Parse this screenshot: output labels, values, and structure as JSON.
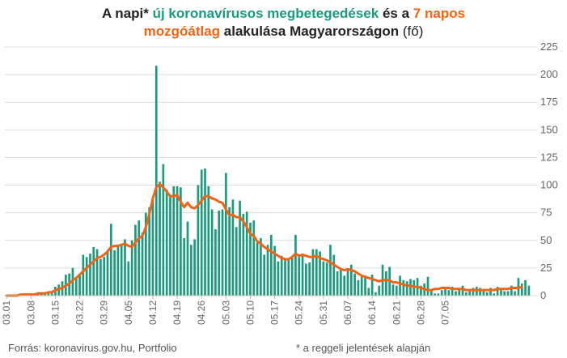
{
  "title": {
    "part1": "A napi* ",
    "part2": "új koronavírusos megbetegedések",
    "part3": " és a ",
    "part4": "7 napos",
    "part5": "mozgóátlag",
    "part6": " alakulása Magyarországon",
    "part7": " (fő)"
  },
  "footer": {
    "source": "Forrás: koronavirus.gov.hu, Portfolio",
    "note": "* a reggeli jelentések alapján"
  },
  "colors": {
    "bars": "#1a9b7e",
    "line": "#f06414",
    "grid": "#dddddd",
    "text": "#666666"
  },
  "chart_data": {
    "type": "bar",
    "ylim": [
      0,
      225
    ],
    "yticks": [
      0,
      25,
      50,
      75,
      100,
      125,
      150,
      175,
      200,
      225
    ],
    "grid": true,
    "x_tick_labels": [
      "03.01",
      "03.08",
      "03.15",
      "03.22",
      "03.29",
      "04.05",
      "04.12",
      "04.19",
      "04.26",
      "05.03",
      "05.10",
      "05.17",
      "05.24",
      "05.31",
      "06.07",
      "06.14",
      "06.21",
      "06.28",
      "07.05"
    ],
    "series": [
      {
        "type": "bar",
        "values": [
          0,
          0,
          0,
          0,
          1,
          1,
          1,
          1,
          2,
          3,
          2,
          3,
          3,
          3,
          8,
          10,
          13,
          19,
          20,
          25,
          17,
          19,
          37,
          35,
          38,
          44,
          42,
          33,
          35,
          41,
          65,
          41,
          46,
          45,
          51,
          31,
          50,
          64,
          68,
          57,
          75,
          80,
          89,
          208,
          103,
          119,
          96,
          91,
          99,
          99,
          98,
          52,
          67,
          46,
          51,
          100,
          114,
          115,
          99,
          78,
          60,
          77,
          78,
          111,
          80,
          87,
          62,
          86,
          74,
          76,
          66,
          68,
          48,
          52,
          37,
          46,
          55,
          45,
          31,
          36,
          34,
          33,
          35,
          55,
          35,
          38,
          29,
          30,
          42,
          42,
          40,
          31,
          30,
          46,
          37,
          22,
          24,
          18,
          23,
          28,
          20,
          14,
          17,
          18,
          7,
          19,
          3,
          9,
          28,
          22,
          26,
          10,
          9,
          18,
          14,
          13,
          15,
          14,
          16,
          9,
          11,
          17,
          4,
          2,
          2,
          5,
          7,
          5,
          8,
          4,
          6,
          9,
          3,
          4,
          7,
          8,
          7,
          4,
          3,
          7,
          2,
          8,
          5,
          4,
          4,
          9,
          4,
          16,
          11,
          14,
          9
        ],
        "legend": "új koronavírusos megbetegedések"
      },
      {
        "type": "line",
        "values": [
          0,
          0,
          0,
          0,
          1,
          1,
          1,
          1,
          1,
          2,
          2,
          2,
          3,
          3,
          5,
          6,
          7,
          9,
          11,
          14,
          16,
          19,
          22,
          25,
          28,
          31,
          34,
          35,
          37,
          40,
          44,
          45,
          45,
          46,
          47,
          45,
          44,
          48,
          52,
          54,
          62,
          74,
          88,
          98,
          101,
          98,
          94,
          90,
          90,
          91,
          85,
          80,
          84,
          80,
          79,
          82,
          86,
          90,
          90,
          88,
          87,
          85,
          84,
          78,
          73,
          73,
          71,
          71,
          67,
          62,
          56,
          54,
          49,
          47,
          44,
          42,
          40,
          38,
          36,
          34,
          33,
          33,
          35,
          38,
          36,
          37,
          36,
          35,
          35,
          36,
          34,
          33,
          32,
          30,
          28,
          26,
          24,
          23,
          24,
          23,
          22,
          20,
          18,
          17,
          16,
          15,
          14,
          13,
          14,
          14,
          14,
          12,
          12,
          11,
          10,
          9,
          9,
          8,
          8,
          7,
          6,
          5,
          5,
          6,
          6,
          7,
          7,
          7,
          6,
          6,
          6,
          6,
          5,
          5,
          5,
          5,
          5,
          5,
          5,
          5,
          5,
          6,
          6,
          6,
          6,
          7,
          7,
          7,
          8
        ],
        "legend": "7 napos mozgóátlag"
      }
    ]
  }
}
